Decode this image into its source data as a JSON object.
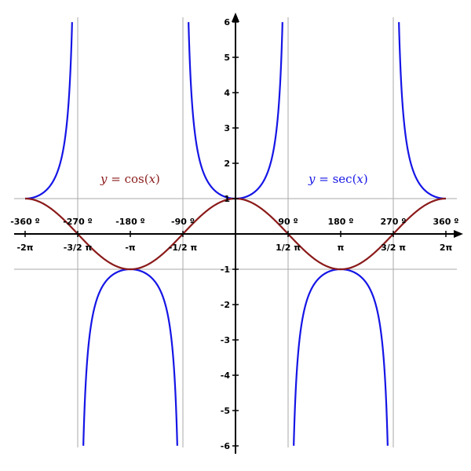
{
  "chart_data": {
    "type": "line",
    "title": "",
    "xlabel": "",
    "ylabel": "",
    "xlim": [
      -6.33,
      6.33
    ],
    "ylim": [
      -6,
      6
    ],
    "grid": "guide lines at y = 1, y = -1 and x = ±π/2, ±3π/2",
    "x_tick_labels": [
      {
        "value": -6.2832,
        "label": "-2π"
      },
      {
        "value": -4.7124,
        "label": "-3/2 π"
      },
      {
        "value": -3.1416,
        "label": "-π"
      },
      {
        "value": -1.5708,
        "label": "-1/2 π"
      },
      {
        "value": 1.5708,
        "label": "1/2 π"
      },
      {
        "value": 3.1416,
        "label": "π"
      },
      {
        "value": 4.7124,
        "label": "3/2 π"
      },
      {
        "value": 6.2832,
        "label": "2π"
      }
    ],
    "x_degree_labels": [
      {
        "value": -6.2832,
        "label": "-360 º"
      },
      {
        "value": -4.7124,
        "label": "-270 º"
      },
      {
        "value": -3.1416,
        "label": "-180 º"
      },
      {
        "value": -1.5708,
        "label": "-90 º"
      },
      {
        "value": 1.5708,
        "label": "90 º"
      },
      {
        "value": 3.1416,
        "label": "180 º"
      },
      {
        "value": 4.7124,
        "label": "270 º"
      },
      {
        "value": 6.2832,
        "label": "360 º"
      }
    ],
    "y_ticks": [
      {
        "value": 6,
        "label": "6"
      },
      {
        "value": 5,
        "label": "5"
      },
      {
        "value": 4,
        "label": "4"
      },
      {
        "value": 3,
        "label": "3"
      },
      {
        "value": 2,
        "label": "2"
      },
      {
        "value": 1,
        "label": "1"
      },
      {
        "value": -1,
        "label": "-1"
      },
      {
        "value": -2,
        "label": "-2"
      },
      {
        "value": -3,
        "label": "-3"
      },
      {
        "value": -4,
        "label": "-4"
      },
      {
        "value": -5,
        "label": "-5"
      },
      {
        "value": -6,
        "label": "-6"
      }
    ],
    "series": [
      {
        "name": "y = sec(x)",
        "function": "sec",
        "color": "#1515e6"
      },
      {
        "name": "y = cos(x)",
        "function": "cos",
        "color": "#8b1a1a"
      }
    ],
    "labels": {
      "cos": {
        "prefix": "y",
        "eq": " = cos(",
        "arg": "x",
        "suffix": ")"
      },
      "sec": {
        "prefix": "y",
        "eq": " = sec(",
        "arg": "x",
        "suffix": ")"
      }
    },
    "colors": {
      "guide": "#aaaaaa",
      "axis": "#000000"
    }
  }
}
